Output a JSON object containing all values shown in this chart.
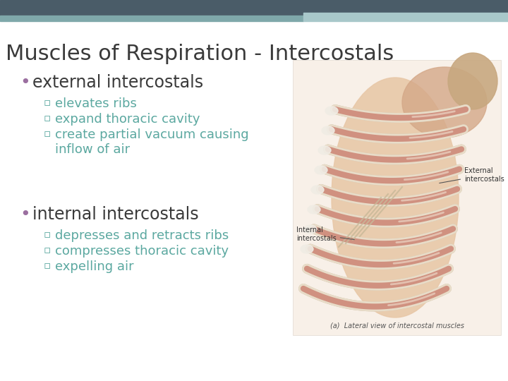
{
  "title": "Muscles of Respiration - Intercostals",
  "title_color": "#3a3a3a",
  "title_fontsize": 22,
  "bg_color": "#ffffff",
  "header_left_color": "#4a5c68",
  "header_right_color": "#7fa8aa",
  "header_right2_color": "#a8c8ca",
  "bullet_marker_color": "#9b6fa0",
  "bullet_text_color": "#3a3a3a",
  "bullet_fontsize": 17,
  "sub_marker_color": "#5ba8a0",
  "sub_text_color": "#5ba8a0",
  "sub_fontsize": 13,
  "bullet1_text": "external intercostals",
  "sub1": [
    "elevates ribs",
    "expand thoracic cavity",
    "create partial vacuum causing\ninflow of air"
  ],
  "bullet2_text": "internal intercostals",
  "sub2": [
    "depresses and retracts ribs",
    "compresses thoracic cavity",
    "expelling air"
  ],
  "image_caption": "(a)  Lateral view of intercostal muscles",
  "ext_label": "External\nintercostals",
  "int_label": "Internal\nintercostals"
}
